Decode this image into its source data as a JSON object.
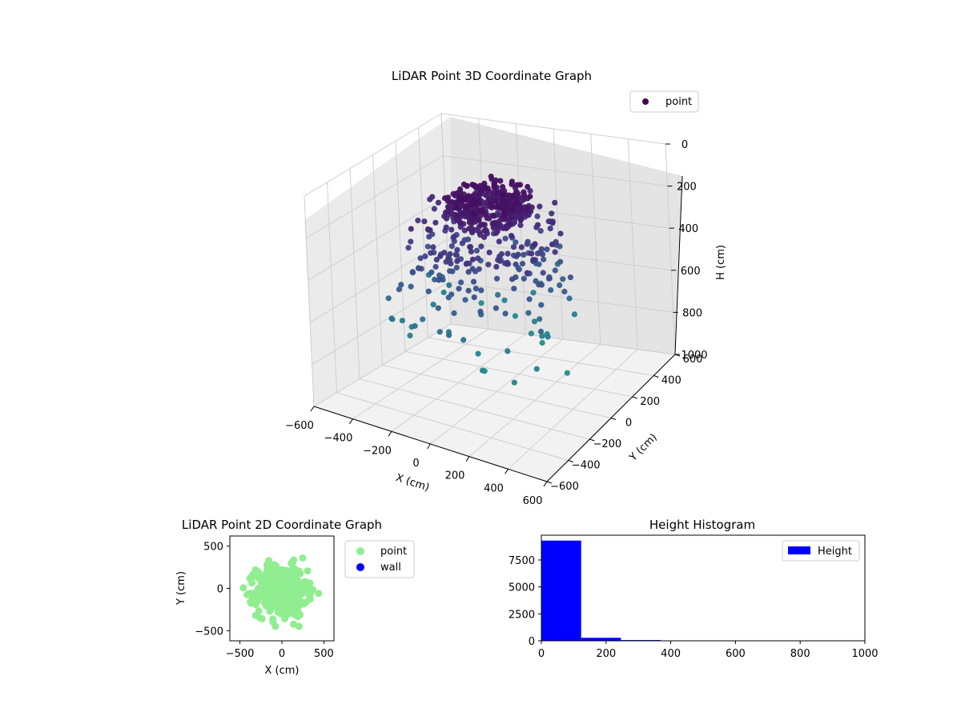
{
  "chart_data": [
    {
      "type": "scatter",
      "projection": "3d",
      "title": "LiDAR Point 3D Coordinate Graph",
      "xlabel": "X (cm)",
      "ylabel": "Y (cm)",
      "zlabel": "H (cm)",
      "xlim": [
        -600,
        600
      ],
      "ylim": [
        -600,
        600
      ],
      "zlim": [
        0,
        1000
      ],
      "zinverted": true,
      "xticks": [
        "−600",
        "−400",
        "−200",
        "0",
        "200",
        "400",
        "600"
      ],
      "yticks": [
        "−600",
        "−400",
        "−200",
        "0",
        "200",
        "400",
        "600"
      ],
      "zticks": [
        "0",
        "200",
        "400",
        "600",
        "800",
        "1000"
      ],
      "grid": true,
      "legend": {
        "position": "top-right",
        "entries": [
          {
            "label": "point",
            "color": "#440154"
          }
        ]
      },
      "colormap": "viridis",
      "point_count_estimate": 600,
      "notes_visible": "dense cluster near top center (H≈50–200), sparser points down to H≈800"
    },
    {
      "type": "scatter",
      "title": "LiDAR Point 2D Coordinate Graph",
      "xlabel": "X (cm)",
      "ylabel": "Y (cm)",
      "xlim": [
        -620,
        620
      ],
      "ylim": [
        -620,
        620
      ],
      "xticks": [
        "−500",
        "0",
        "500"
      ],
      "yticks": [
        "−500",
        "0",
        "500"
      ],
      "legend": {
        "position": "outside-right",
        "entries": [
          {
            "label": "point",
            "color": "#90ee90"
          },
          {
            "label": "wall",
            "color": "#0000ff"
          }
        ]
      },
      "series": [
        {
          "name": "point",
          "color": "#90ee90",
          "extent_x": [
            -460,
            450
          ],
          "extent_y": [
            -450,
            360
          ]
        }
      ]
    },
    {
      "type": "bar",
      "subtype": "histogram",
      "title": "Height Histogram",
      "xlim": [
        0,
        1000
      ],
      "ylim": [
        0,
        9800
      ],
      "xticks": [
        "0",
        "200",
        "400",
        "600",
        "800",
        "1000"
      ],
      "yticks": [
        "0",
        "2500",
        "5000",
        "7500"
      ],
      "bins": [
        {
          "x0": 0,
          "x1": 123,
          "value": 9300
        },
        {
          "x0": 123,
          "x1": 246,
          "value": 280
        },
        {
          "x0": 246,
          "x1": 369,
          "value": 70
        },
        {
          "x0": 369,
          "x1": 492,
          "value": 10
        }
      ],
      "legend": {
        "position": "top-right",
        "entries": [
          {
            "label": "Height",
            "color": "#0000ff"
          }
        ]
      },
      "color": "#0000ff"
    }
  ]
}
